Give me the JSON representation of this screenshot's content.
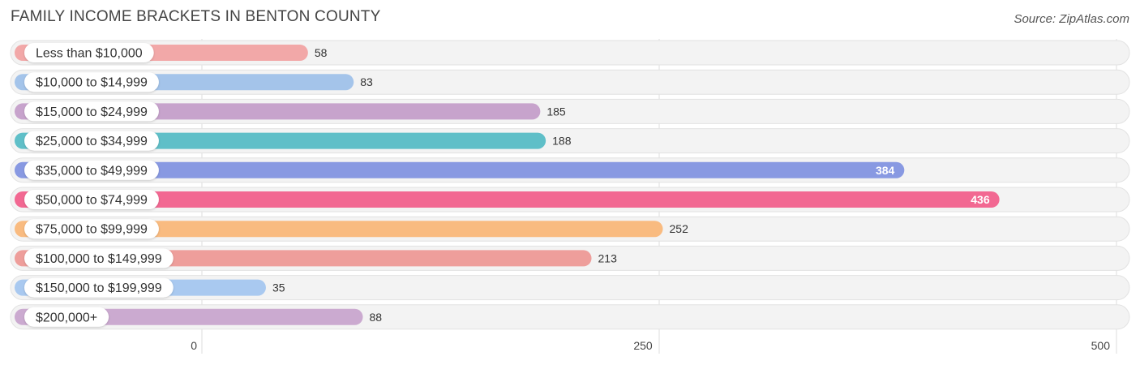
{
  "chart_data": {
    "type": "bar",
    "orientation": "horizontal",
    "title": "FAMILY INCOME BRACKETS IN BENTON COUNTY",
    "source": "Source: ZipAtlas.com",
    "categories": [
      "Less than $10,000",
      "$10,000 to $14,999",
      "$15,000 to $24,999",
      "$25,000 to $34,999",
      "$35,000 to $49,999",
      "$50,000 to $74,999",
      "$75,000 to $99,999",
      "$100,000 to $149,999",
      "$150,000 to $199,999",
      "$200,000+"
    ],
    "values": [
      58,
      83,
      185,
      188,
      384,
      436,
      252,
      213,
      35,
      88
    ],
    "colors": [
      "#f2a8a8",
      "#a4c4ea",
      "#c7a3cc",
      "#5fbfc8",
      "#8899e2",
      "#f26892",
      "#f9bb80",
      "#ee9e9b",
      "#a9c9f0",
      "#cbaad0"
    ],
    "value_labels_inside": [
      false,
      false,
      false,
      false,
      true,
      true,
      false,
      false,
      false,
      false
    ],
    "xlim": [
      0,
      500
    ],
    "xticks": [
      0,
      250,
      500
    ],
    "tick_labels": [
      "0",
      "250",
      "500"
    ],
    "grid": true
  }
}
